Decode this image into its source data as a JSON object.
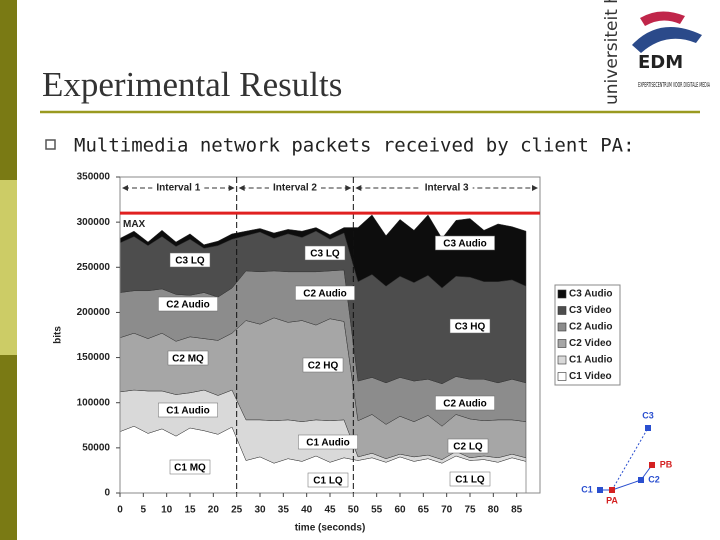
{
  "header": {
    "title": "Experimental Results",
    "bullet": "Multimedia network packets received by client PA:"
  },
  "logo": {
    "university": "universiteit hasselt",
    "name": "EDM",
    "subtitle": "EXPERTISECENTRUM VOOR DIGITALE MEDIA"
  },
  "chart_data": {
    "type": "area",
    "stacked": true,
    "xlabel": "time (seconds)",
    "ylabel": "bits",
    "x": [
      0,
      3,
      6,
      9,
      12,
      15,
      18,
      21,
      24,
      27,
      30,
      33,
      36,
      39,
      42,
      45,
      48,
      51,
      54,
      57,
      60,
      63,
      66,
      69,
      72,
      75,
      78,
      81,
      84,
      87
    ],
    "xlim": [
      0,
      90
    ],
    "xticks": [
      0,
      5,
      10,
      15,
      20,
      25,
      30,
      35,
      40,
      45,
      50,
      55,
      60,
      65,
      70,
      75,
      80,
      85
    ],
    "ylim": [
      0,
      350000
    ],
    "yticks": [
      0,
      50000,
      100000,
      150000,
      200000,
      250000,
      300000,
      350000
    ],
    "series": [
      {
        "name": "C1 Video",
        "color": "#ffffff",
        "values": [
          68000,
          74000,
          66000,
          71000,
          63000,
          72000,
          69000,
          65000,
          73000,
          36000,
          40000,
          33000,
          38000,
          35000,
          41000,
          34000,
          39000,
          36000,
          39000,
          34000,
          40000,
          35000,
          38000,
          33000,
          41000,
          36000,
          37000,
          34000,
          39000,
          35000
        ]
      },
      {
        "name": "C1 Audio",
        "color": "#d9d9d9",
        "values": [
          44000,
          40000,
          47000,
          42000,
          46000,
          39000,
          45000,
          43000,
          41000,
          45000,
          41000,
          47000,
          43000,
          44000,
          40000,
          46000,
          42000,
          4000,
          5000,
          4000,
          3000,
          5000,
          4000,
          4000,
          5000,
          3000,
          4000,
          5000,
          4000,
          4000
        ]
      },
      {
        "name": "C2 Video",
        "color": "#a6a6a6",
        "values": [
          60000,
          63000,
          58000,
          64000,
          59000,
          62000,
          57000,
          61000,
          63000,
          110000,
          106000,
          114000,
          108000,
          112000,
          105000,
          113000,
          109000,
          40000,
          43000,
          38000,
          42000,
          39000,
          44000,
          37000,
          41000,
          43000,
          39000,
          42000,
          38000,
          40000
        ]
      },
      {
        "name": "C2 Audio",
        "color": "#8c8c8c",
        "values": [
          50000,
          47000,
          53000,
          49000,
          52000,
          46000,
          51000,
          48000,
          50000,
          55000,
          58000,
          52000,
          56000,
          54000,
          59000,
          53000,
          57000,
          44000,
          41000,
          46000,
          43000,
          45000,
          40000,
          47000,
          42000,
          44000,
          46000,
          41000,
          45000,
          43000
        ]
      },
      {
        "name": "C3 Video",
        "color": "#4d4d4d",
        "values": [
          55000,
          60000,
          50000,
          58000,
          53000,
          62000,
          49000,
          57000,
          54000,
          39000,
          44000,
          36000,
          42000,
          38000,
          45000,
          35000,
          41000,
          110000,
          114000,
          107000,
          112000,
          109000,
          115000,
          106000,
          111000,
          113000,
          108000,
          112000,
          110000,
          107000
        ]
      },
      {
        "name": "C3 Audio",
        "color": "#0d0d0d",
        "values": [
          5000,
          6000,
          4000,
          7000,
          5000,
          6000,
          4000,
          5000,
          6000,
          5000,
          4000,
          6000,
          5000,
          7000,
          4000,
          5000,
          6000,
          60000,
          66000,
          56000,
          63000,
          58000,
          67000,
          55000,
          62000,
          65000,
          57000,
          64000,
          59000,
          61000
        ]
      }
    ],
    "max_line": {
      "value": 310000,
      "label": "MAX",
      "color": "#e02020"
    },
    "intervals": [
      {
        "label": "Interval 1",
        "start": 0,
        "end": 25
      },
      {
        "label": "Interval 2",
        "start": 25,
        "end": 50
      },
      {
        "label": "Interval 3",
        "start": 50,
        "end": 90
      }
    ],
    "annotations": [
      "C3 LQ",
      "C3 LQ",
      "C3 Audio",
      "C2 Audio",
      "C2 Audio",
      "C3 HQ",
      "C2 MQ",
      "C2 HQ",
      "C2 Audio",
      "C1 Audio",
      "C1 Audio",
      "C2 LQ",
      "C1 MQ",
      "C1 LQ",
      "C1 LQ"
    ],
    "legend": "right"
  },
  "diagram": {
    "nodes": [
      {
        "label": "C3"
      },
      {
        "label": "PB"
      },
      {
        "label": "C2"
      },
      {
        "label": "C1"
      },
      {
        "label": "PA"
      }
    ]
  }
}
